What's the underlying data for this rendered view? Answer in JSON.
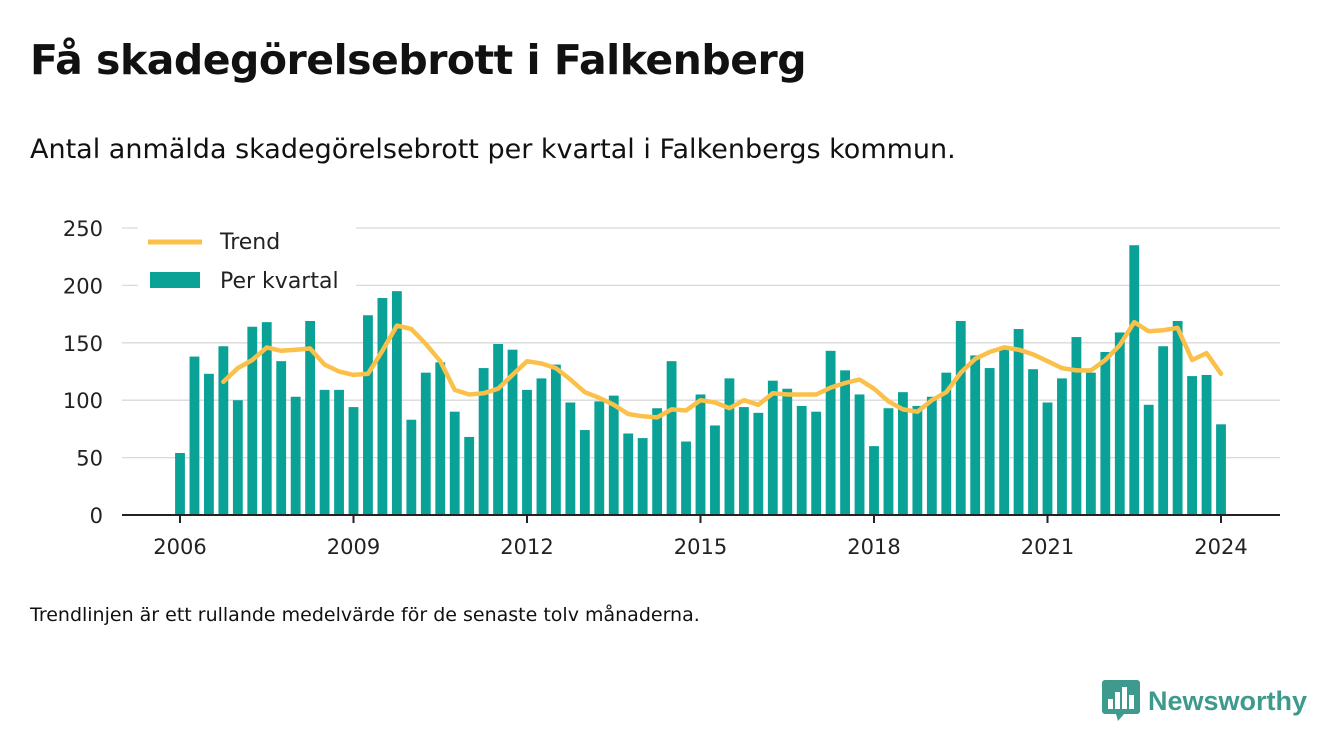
{
  "title": "Få skadegörelsebrott i Falkenberg",
  "subtitle": "Antal anmälda skadegörelsebrott per kvartal i Falkenbergs kommun.",
  "footnote": "Trendlinjen är ett rullande medelvärde för de senaste tolv månaderna.",
  "brand": {
    "name": "Newsworthy",
    "color": "#3d9a8c",
    "icon": "bar-chart-speech-bubble-icon"
  },
  "chart_data": {
    "type": "bar",
    "legend_position": "top-left",
    "grid": true,
    "ylim": [
      0,
      250
    ],
    "yticks": [
      0,
      50,
      100,
      150,
      200,
      250
    ],
    "xlim": [
      2005,
      2025
    ],
    "xticks": [
      2006,
      2009,
      2012,
      2015,
      2018,
      2021,
      2024
    ],
    "colors": {
      "bars": "#0aa296",
      "trend": "#fbc04a"
    },
    "series": [
      {
        "name": "Per kvartal",
        "kind": "bar",
        "x": [
          2006,
          2006.25,
          2006.5,
          2006.75,
          2007,
          2007.25,
          2007.5,
          2007.75,
          2008,
          2008.25,
          2008.5,
          2008.75,
          2009,
          2009.25,
          2009.5,
          2009.75,
          2010,
          2010.25,
          2010.5,
          2010.75,
          2011,
          2011.25,
          2011.5,
          2011.75,
          2012,
          2012.25,
          2012.5,
          2012.75,
          2013,
          2013.25,
          2013.5,
          2013.75,
          2014,
          2014.25,
          2014.5,
          2014.75,
          2015,
          2015.25,
          2015.5,
          2015.75,
          2016,
          2016.25,
          2016.5,
          2016.75,
          2017,
          2017.25,
          2017.5,
          2017.75,
          2018,
          2018.25,
          2018.5,
          2018.75,
          2019,
          2019.25,
          2019.5,
          2019.75,
          2020,
          2020.25,
          2020.5,
          2020.75,
          2021,
          2021.25,
          2021.5,
          2021.75,
          2022,
          2022.25,
          2022.5,
          2022.75,
          2023,
          2023.25,
          2023.5,
          2023.75,
          2024
        ],
        "values": [
          54,
          138,
          123,
          147,
          100,
          164,
          168,
          134,
          103,
          169,
          109,
          109,
          94,
          174,
          189,
          195,
          83,
          124,
          133,
          90,
          68,
          128,
          149,
          144,
          109,
          119,
          131,
          98,
          74,
          99,
          104,
          71,
          67,
          93,
          134,
          64,
          105,
          78,
          119,
          94,
          89,
          117,
          110,
          95,
          90,
          143,
          126,
          105,
          60,
          93,
          107,
          95,
          103,
          124,
          169,
          139,
          128,
          146,
          162,
          127,
          98,
          119,
          155,
          124,
          142,
          159,
          235,
          96,
          147,
          169,
          121,
          122,
          79
        ]
      },
      {
        "name": "Trend",
        "kind": "line",
        "x": [
          2006.75,
          2007,
          2007.25,
          2007.5,
          2007.75,
          2008,
          2008.25,
          2008.5,
          2008.75,
          2009,
          2009.25,
          2009.5,
          2009.75,
          2010,
          2010.25,
          2010.5,
          2010.75,
          2011,
          2011.25,
          2011.5,
          2011.75,
          2012,
          2012.25,
          2012.5,
          2012.75,
          2013,
          2013.25,
          2013.5,
          2013.75,
          2014,
          2014.25,
          2014.5,
          2014.75,
          2015,
          2015.25,
          2015.5,
          2015.75,
          2016,
          2016.25,
          2016.5,
          2016.75,
          2017,
          2017.25,
          2017.5,
          2017.75,
          2018,
          2018.25,
          2018.5,
          2018.75,
          2019,
          2019.25,
          2019.5,
          2019.75,
          2020,
          2020.25,
          2020.5,
          2020.75,
          2021,
          2021.25,
          2021.5,
          2021.75,
          2022,
          2022.25,
          2022.5,
          2022.75,
          2023,
          2023.25,
          2023.5,
          2023.75,
          2024
        ],
        "values": [
          116,
          128,
          135,
          146,
          143,
          144,
          145,
          131,
          125,
          122,
          123,
          143,
          165,
          162,
          149,
          134,
          109,
          105,
          106,
          110,
          122,
          134,
          132,
          128,
          118,
          107,
          102,
          96,
          88,
          86,
          85,
          92,
          91,
          100,
          98,
          93,
          100,
          96,
          106,
          105,
          105,
          105,
          111,
          115,
          118,
          110,
          99,
          92,
          90,
          100,
          107,
          124,
          136,
          142,
          146,
          144,
          140,
          134,
          128,
          126,
          126,
          135,
          148,
          168,
          160,
          161,
          163,
          135,
          141,
          123
        ]
      }
    ]
  }
}
